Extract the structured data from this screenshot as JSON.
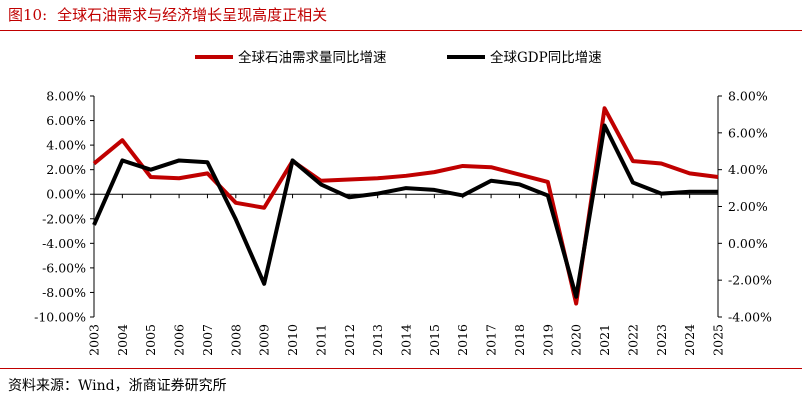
{
  "header": {
    "figure_number": "图10:",
    "title": "全球石油需求与经济增长呈现高度正相关"
  },
  "footer": {
    "source": "资料来源：Wind，浙商证券研究所"
  },
  "colors": {
    "accent": "#c00000",
    "oil_series": "#c00000",
    "gdp_series": "#000000"
  },
  "chart_data": {
    "type": "line",
    "title": "",
    "xlabel": "",
    "ylabel": "",
    "x": [
      "2003",
      "2004",
      "2005",
      "2006",
      "2007",
      "2008",
      "2009",
      "2010",
      "2011",
      "2012",
      "2013",
      "2014",
      "2015",
      "2016",
      "2017",
      "2018",
      "2019",
      "2020",
      "2021",
      "2022",
      "2023",
      "2024",
      "2025"
    ],
    "legend_position": "top",
    "grid": false,
    "series": [
      {
        "name": "全球石油需求量同比增速",
        "axis": "left",
        "values": [
          2.5,
          4.4,
          1.4,
          1.3,
          1.7,
          -0.7,
          -1.1,
          2.7,
          1.1,
          1.2,
          1.3,
          1.5,
          1.8,
          2.3,
          2.2,
          1.6,
          1.0,
          -8.9,
          7.0,
          2.7,
          2.5,
          1.7,
          1.4
        ]
      },
      {
        "name": "全球GDP同比增速",
        "axis": "right",
        "values": [
          1.0,
          4.5,
          4.0,
          4.5,
          4.4,
          1.3,
          -2.2,
          4.5,
          3.2,
          2.5,
          2.7,
          3.0,
          2.9,
          2.6,
          3.4,
          3.2,
          2.6,
          -2.9,
          6.4,
          3.3,
          2.7,
          2.8,
          2.8
        ]
      }
    ],
    "y_left": {
      "ylim": [
        -10,
        8
      ],
      "ticks": [
        8,
        6,
        4,
        2,
        0,
        -2,
        -4,
        -6,
        -8,
        -10
      ],
      "tick_labels": [
        "8.00%",
        "6.00%",
        "4.00%",
        "2.00%",
        "0.00%",
        "-2.00%",
        "-4.00%",
        "-6.00%",
        "-8.00%",
        "-10.00%"
      ]
    },
    "y_right": {
      "ylim": [
        -4,
        8
      ],
      "ticks": [
        8,
        6,
        4,
        2,
        0,
        -2,
        -4
      ],
      "tick_labels": [
        "8.00%",
        "6.00%",
        "4.00%",
        "2.00%",
        "0.00%",
        "-2.00%",
        "-4.00%"
      ]
    }
  }
}
